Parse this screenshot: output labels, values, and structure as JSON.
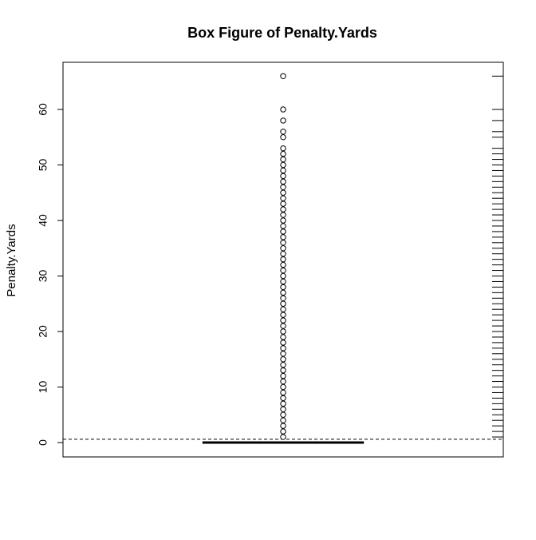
{
  "chart_data": {
    "type": "box",
    "title": "Box Figure of Penalty.Yards",
    "ylabel": "Penalty.Yards",
    "xlabel": "",
    "ylim": [
      0,
      68
    ],
    "yticks": [
      0,
      10,
      20,
      30,
      40,
      50,
      60
    ],
    "box": {
      "min": 0,
      "q1": 0,
      "median": 0,
      "q3": 0,
      "max": 0
    },
    "outliers": [
      1,
      2,
      3,
      4,
      5,
      6,
      7,
      8,
      9,
      10,
      11,
      12,
      13,
      14,
      15,
      16,
      17,
      18,
      19,
      20,
      21,
      22,
      23,
      24,
      25,
      26,
      27,
      28,
      29,
      30,
      31,
      32,
      33,
      34,
      35,
      36,
      37,
      38,
      39,
      40,
      41,
      42,
      43,
      44,
      45,
      46,
      47,
      48,
      49,
      50,
      51,
      52,
      53,
      55,
      56,
      58,
      60,
      66
    ],
    "reference_line": {
      "value": 0.6,
      "style": "dashed"
    },
    "rug": [
      1,
      2,
      3,
      4,
      5,
      6,
      7,
      8,
      9,
      10,
      11,
      12,
      13,
      14,
      15,
      16,
      17,
      18,
      19,
      20,
      21,
      22,
      23,
      24,
      25,
      26,
      27,
      28,
      29,
      30,
      31,
      32,
      33,
      34,
      35,
      36,
      37,
      38,
      39,
      40,
      41,
      42,
      43,
      44,
      45,
      46,
      47,
      48,
      49,
      50,
      51,
      52,
      53,
      55,
      56,
      58,
      60,
      66
    ],
    "grid": false,
    "legend": "none"
  }
}
